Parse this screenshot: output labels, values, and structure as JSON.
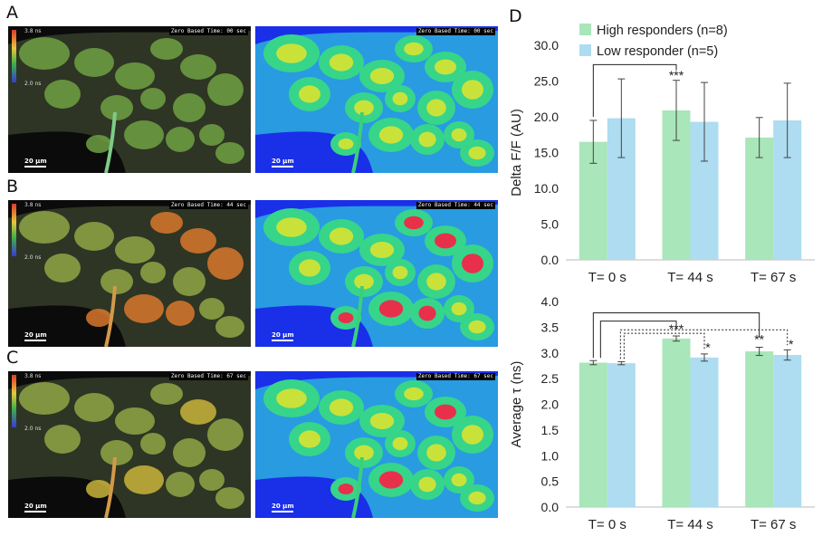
{
  "panel_labels": [
    "A",
    "B",
    "C",
    "D"
  ],
  "microscopy": [
    {
      "stamp": "Zero Based Time: 00 sec",
      "scale": "20 µm",
      "cbar_top": "3.8 ns",
      "cbar_bottom": "2.0 ns"
    },
    {
      "stamp": "Zero Based Time: 44 sec",
      "scale": "20 µm",
      "cbar_top": "3.8 ns",
      "cbar_bottom": "2.0 ns"
    },
    {
      "stamp": "Zero Based Time: 67 sec",
      "scale": "20 µm",
      "cbar_top": "3.8 ns",
      "cbar_bottom": "2.0 ns"
    }
  ],
  "colors": {
    "high": "#a9e6b9",
    "low": "#aedcf1",
    "bg_blue": "#1a2fe8"
  },
  "chart_data": [
    {
      "type": "bar",
      "categories": [
        "T= 0 s",
        "T= 44 s",
        "T= 67 s"
      ],
      "series": [
        {
          "name": "High responders (n=8)",
          "values": [
            16.5,
            20.9,
            17.1
          ],
          "errors": [
            3.0,
            4.2,
            2.8
          ]
        },
        {
          "name": "Low responder (n=5)",
          "values": [
            19.8,
            19.3,
            19.5
          ],
          "errors": [
            5.5,
            5.5,
            5.2
          ]
        }
      ],
      "ylabel": "Delta F/F (AU)",
      "ylim": [
        0,
        30
      ],
      "yticks": [
        "0.0",
        "5.0",
        "10.0",
        "15.0",
        "20.0",
        "25.0",
        "30.0"
      ],
      "annotations": [
        "***"
      ],
      "legend": "top"
    },
    {
      "type": "bar",
      "categories": [
        "T= 0 s",
        "T= 44 s",
        "T= 67 s"
      ],
      "series": [
        {
          "name": "High responders (n=8)",
          "values": [
            2.81,
            3.28,
            3.03
          ],
          "errors": [
            0.04,
            0.05,
            0.08
          ]
        },
        {
          "name": "Low responder (n=5)",
          "values": [
            2.8,
            2.91,
            2.96
          ],
          "errors": [
            0.03,
            0.07,
            0.1
          ]
        }
      ],
      "ylabel": "Average τ (ns)",
      "ylim": [
        0,
        4
      ],
      "yticks": [
        "0.0",
        "0.5",
        "1.0",
        "1.5",
        "2.0",
        "2.5",
        "3.0",
        "3.5",
        "4.0"
      ],
      "annotations": [
        "***",
        "*",
        "**",
        "*"
      ]
    }
  ]
}
